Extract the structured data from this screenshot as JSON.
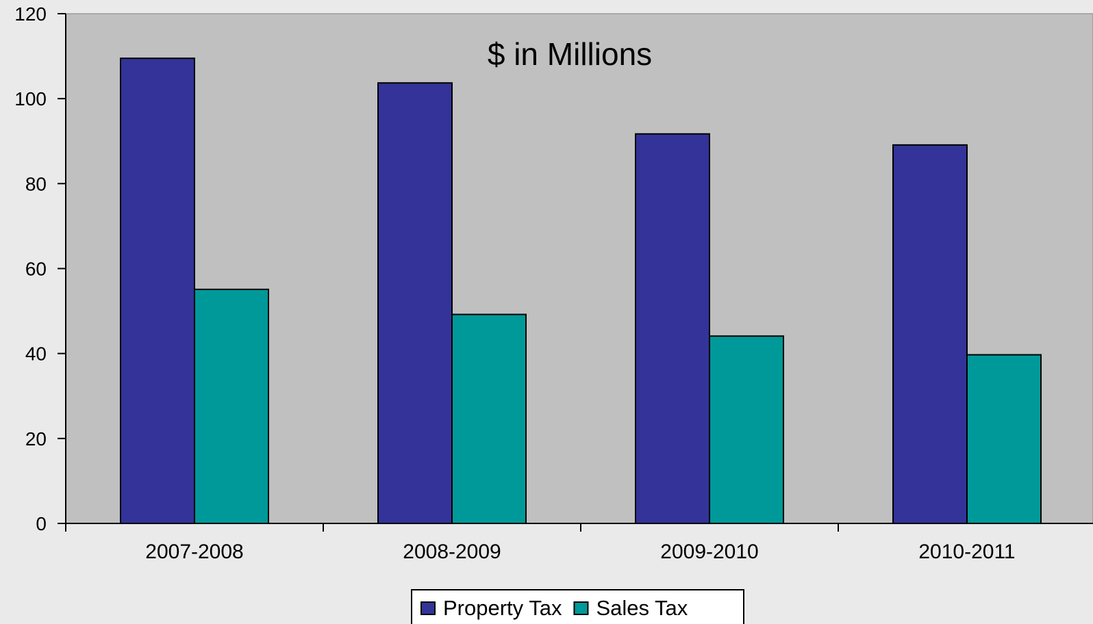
{
  "chart_data": {
    "type": "bar",
    "title": "$ in Millions",
    "categories": [
      "2007-2008",
      "2008-2009",
      "2009-2010",
      "2010-2011"
    ],
    "series": [
      {
        "name": "Property Tax",
        "color": "#333399",
        "values": [
          109.5,
          103.7,
          91.7,
          89.1
        ]
      },
      {
        "name": "Sales Tax",
        "color": "#009999",
        "values": [
          55.1,
          49.2,
          44.1,
          39.7
        ]
      }
    ],
    "ylim": [
      0,
      120
    ],
    "yticks": [
      0,
      20,
      40,
      60,
      80,
      100,
      120
    ],
    "xlabel": "",
    "ylabel": "",
    "legend_position": "bottom-center",
    "plot_background": "#c0c0c0",
    "page_background": "#eaeaea",
    "grid": false
  }
}
